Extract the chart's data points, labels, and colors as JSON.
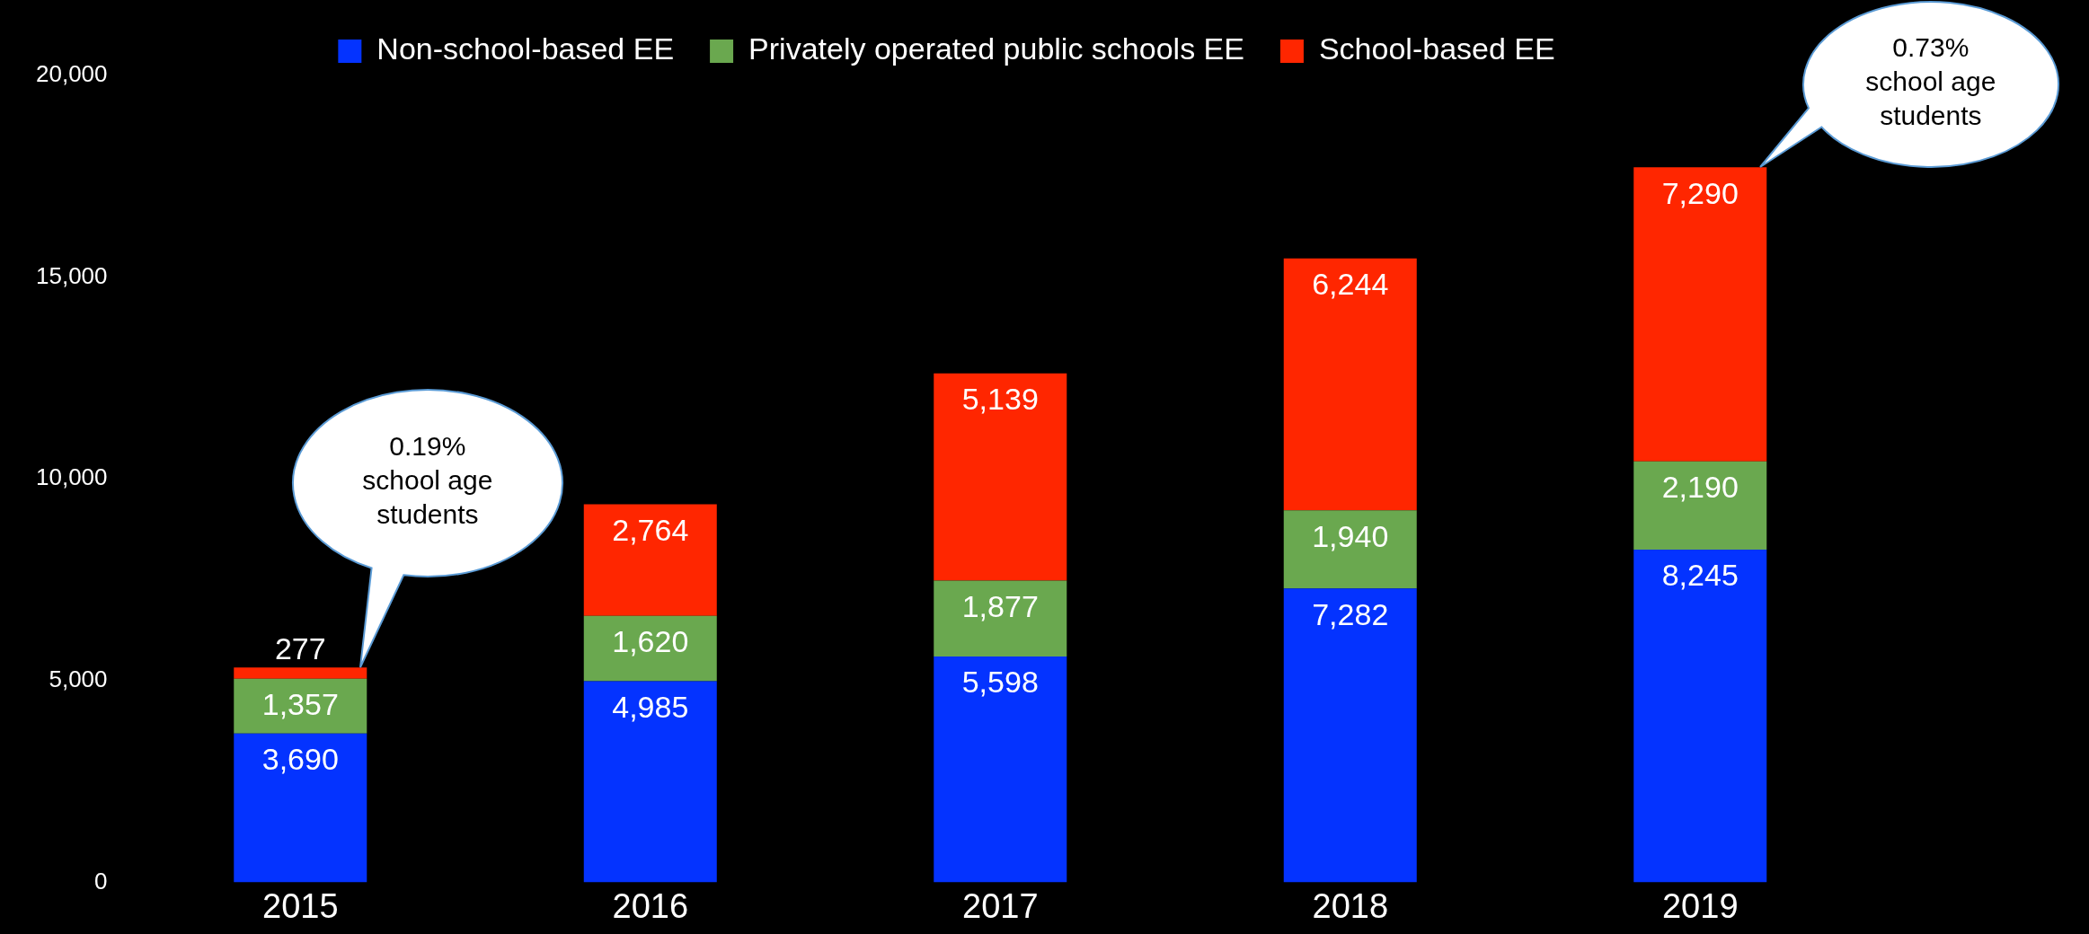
{
  "chart_data": {
    "type": "bar",
    "stacked": true,
    "categories": [
      "2015",
      "2016",
      "2017",
      "2018",
      "2019"
    ],
    "series": [
      {
        "name": "Non-school-based EE",
        "color": "#0433ff",
        "values": [
          3690,
          4985,
          5598,
          7282,
          8245
        ]
      },
      {
        "name": "Privately operated public schools EE",
        "color": "#6aa84f",
        "values": [
          1357,
          1620,
          1877,
          1940,
          2190
        ]
      },
      {
        "name": "School-based EE",
        "color": "#ff2600",
        "values": [
          277,
          2764,
          5139,
          6244,
          7290
        ]
      }
    ],
    "ylim": [
      0,
      20000
    ],
    "yticks": [
      {
        "value": 0,
        "label": "0"
      },
      {
        "value": 5000,
        "label": "5,000"
      },
      {
        "value": 10000,
        "label": "10,000"
      },
      {
        "value": 15000,
        "label": "15,000"
      },
      {
        "value": 20000,
        "label": "20,000"
      }
    ],
    "value_labels": [
      [
        "3,690",
        "4,985",
        "5,598",
        "7,282",
        "8,245"
      ],
      [
        "1,357",
        "1,620",
        "1,877",
        "1,940",
        "2,190"
      ],
      [
        "277",
        "2,764",
        "5,139",
        "6,244",
        "7,290"
      ]
    ],
    "legend": "top",
    "annotations": [
      "0.19%\nschool age\nstudents",
      "0.73%\nschool age\nstudents"
    ]
  }
}
